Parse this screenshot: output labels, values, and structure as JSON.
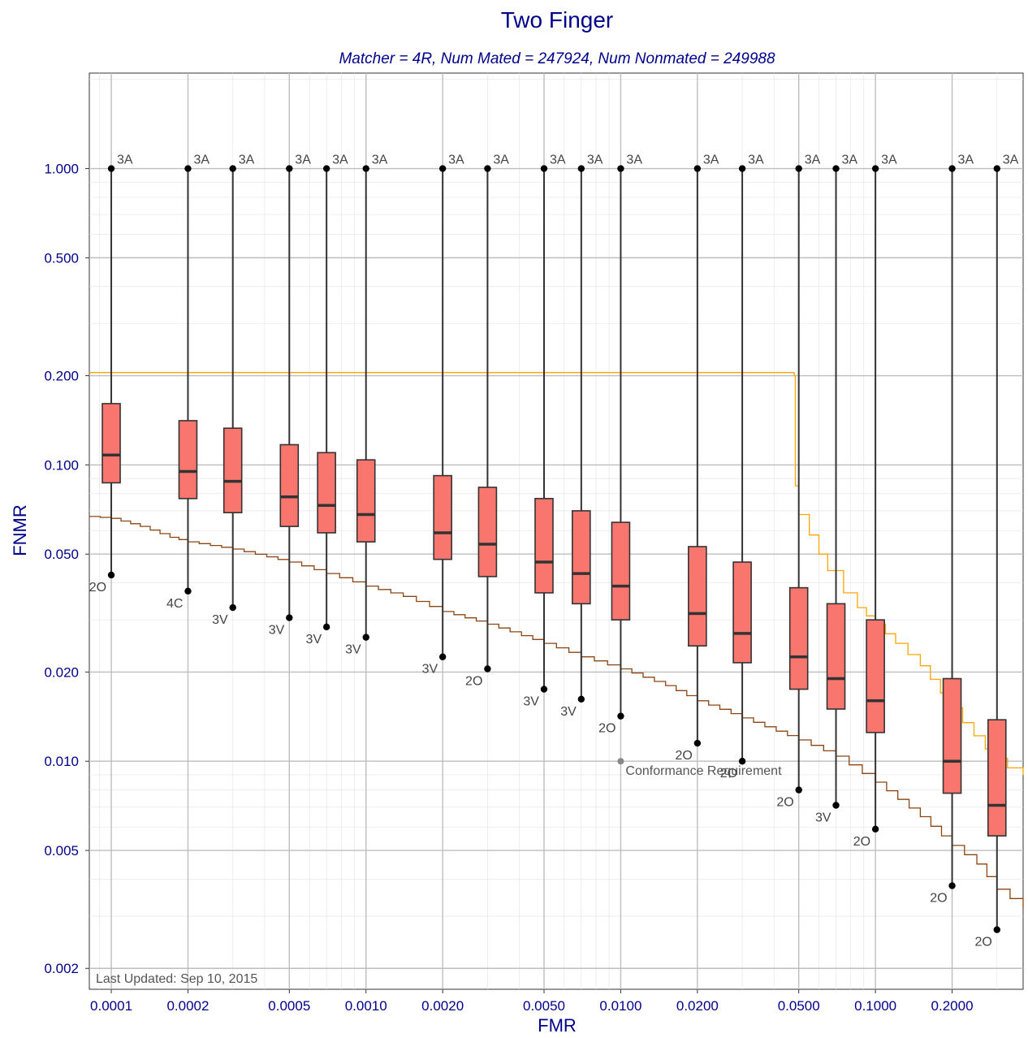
{
  "chart_data": {
    "type": "box",
    "title": "Two Finger",
    "subtitle": "Matcher = 4R,   Num Mated = 247924,   Num Nonmated = 249988",
    "xlabel": "FMR",
    "ylabel": "FNMR",
    "x_scale": "log",
    "y_scale": "log",
    "xlim": [
      8.2e-05,
      0.38
    ],
    "ylim": [
      0.0017,
      2.1
    ],
    "x_ticks": [
      0.0001,
      0.0002,
      0.0005,
      0.001,
      0.002,
      0.005,
      0.01,
      0.02,
      0.05,
      0.1,
      0.2
    ],
    "x_tick_labels": [
      "0.0001",
      "0.0002",
      "0.0005",
      "0.0010",
      "0.0020",
      "0.0050",
      "0.0100",
      "0.0200",
      "0.0500",
      "0.1000",
      "0.2000"
    ],
    "y_ticks": [
      0.002,
      0.005,
      0.01,
      0.02,
      0.05,
      0.1,
      0.2,
      0.5,
      1.0
    ],
    "y_tick_labels": [
      "0.002",
      "0.005",
      "0.010",
      "0.020",
      "0.050",
      "0.100",
      "0.200",
      "0.500",
      "1.000"
    ],
    "grid": true,
    "boxes": [
      {
        "fmr": 0.0001,
        "min": 0.0425,
        "q1": 0.087,
        "median": 0.108,
        "q3": 0.161,
        "max": 1.0,
        "max_label": "3A",
        "min_label": "2O"
      },
      {
        "fmr": 0.0002,
        "min": 0.0375,
        "q1": 0.077,
        "median": 0.095,
        "q3": 0.141,
        "max": 1.0,
        "max_label": "3A",
        "min_label": "4C"
      },
      {
        "fmr": 0.0003,
        "min": 0.033,
        "q1": 0.069,
        "median": 0.088,
        "q3": 0.133,
        "max": 1.0,
        "max_label": "3A",
        "min_label": "3V"
      },
      {
        "fmr": 0.0005,
        "min": 0.0305,
        "q1": 0.062,
        "median": 0.078,
        "q3": 0.117,
        "max": 1.0,
        "max_label": "3A",
        "min_label": "3V"
      },
      {
        "fmr": 0.0007,
        "min": 0.0284,
        "q1": 0.059,
        "median": 0.073,
        "q3": 0.11,
        "max": 1.0,
        "max_label": "3A",
        "min_label": "3V"
      },
      {
        "fmr": 0.001,
        "min": 0.0262,
        "q1": 0.055,
        "median": 0.068,
        "q3": 0.104,
        "max": 1.0,
        "max_label": "3A",
        "min_label": "3V"
      },
      {
        "fmr": 0.002,
        "min": 0.0225,
        "q1": 0.048,
        "median": 0.059,
        "q3": 0.092,
        "max": 1.0,
        "max_label": "3A",
        "min_label": "3V"
      },
      {
        "fmr": 0.003,
        "min": 0.0205,
        "q1": 0.042,
        "median": 0.054,
        "q3": 0.084,
        "max": 1.0,
        "max_label": "3A",
        "min_label": "2O"
      },
      {
        "fmr": 0.005,
        "min": 0.0175,
        "q1": 0.037,
        "median": 0.047,
        "q3": 0.077,
        "max": 1.0,
        "max_label": "3A",
        "min_label": "3V"
      },
      {
        "fmr": 0.007,
        "min": 0.0162,
        "q1": 0.034,
        "median": 0.043,
        "q3": 0.07,
        "max": 1.0,
        "max_label": "3A",
        "min_label": "3V"
      },
      {
        "fmr": 0.01,
        "min": 0.0142,
        "q1": 0.03,
        "median": 0.039,
        "q3": 0.064,
        "max": 1.0,
        "max_label": "3A",
        "min_label": "2O"
      },
      {
        "fmr": 0.02,
        "min": 0.0115,
        "q1": 0.0245,
        "median": 0.0315,
        "q3": 0.053,
        "max": 1.0,
        "max_label": "3A",
        "min_label": "2O"
      },
      {
        "fmr": 0.03,
        "min": 0.01,
        "q1": 0.0215,
        "median": 0.027,
        "q3": 0.047,
        "max": 1.0,
        "max_label": "3A",
        "min_label": "2O"
      },
      {
        "fmr": 0.05,
        "min": 0.008,
        "q1": 0.0175,
        "median": 0.0225,
        "q3": 0.0385,
        "max": 1.0,
        "max_label": "3A",
        "min_label": "2O"
      },
      {
        "fmr": 0.07,
        "min": 0.0071,
        "q1": 0.015,
        "median": 0.019,
        "q3": 0.034,
        "max": 1.0,
        "max_label": "3A",
        "min_label": "3V"
      },
      {
        "fmr": 0.1,
        "min": 0.0059,
        "q1": 0.0125,
        "median": 0.016,
        "q3": 0.03,
        "max": 1.0,
        "max_label": "3A",
        "min_label": "2O"
      },
      {
        "fmr": 0.2,
        "min": 0.0038,
        "q1": 0.0078,
        "median": 0.01,
        "q3": 0.019,
        "max": 1.0,
        "max_label": "3A",
        "min_label": "2O"
      },
      {
        "fmr": 0.3,
        "min": 0.0027,
        "q1": 0.0056,
        "median": 0.0071,
        "q3": 0.0138,
        "max": 1.0,
        "max_label": "3A",
        "min_label": "2O"
      }
    ],
    "series": [
      {
        "color": "#ffa500",
        "x": [
          8.2e-05,
          0.048,
          0.048,
          0.0485,
          0.05,
          0.055,
          0.06,
          0.065,
          0.075,
          0.085,
          0.1,
          0.12,
          0.15,
          0.18,
          0.22,
          0.27,
          0.33,
          0.38
        ],
        "y": [
          0.205,
          0.205,
          0.2,
          0.085,
          0.068,
          0.058,
          0.05,
          0.044,
          0.037,
          0.033,
          0.029,
          0.025,
          0.021,
          0.017,
          0.0135,
          0.011,
          0.0095,
          0.009
        ]
      },
      {
        "color": "#8b4513",
        "x": [
          8.2e-05,
          0.0001,
          0.00013,
          0.00017,
          0.0002,
          0.0003,
          0.0005,
          0.0007,
          0.001,
          0.0014,
          0.002,
          0.003,
          0.005,
          0.007,
          0.01,
          0.015,
          0.02,
          0.03,
          0.05,
          0.07,
          0.1,
          0.15,
          0.2,
          0.25,
          0.3,
          0.38
        ],
        "y": [
          0.067,
          0.066,
          0.062,
          0.057,
          0.055,
          0.052,
          0.047,
          0.043,
          0.039,
          0.036,
          0.032,
          0.029,
          0.025,
          0.0225,
          0.0205,
          0.018,
          0.016,
          0.014,
          0.0118,
          0.0104,
          0.0085,
          0.0065,
          0.0052,
          0.0045,
          0.0037,
          0.0032
        ]
      }
    ],
    "annotations": {
      "requirement_label": "Conformance Requirement",
      "requirement_point": {
        "fmr": 0.01,
        "fnmr": 0.01
      },
      "updated": "Last Updated: Sep 10, 2015"
    },
    "colors": {
      "box_fill": "#f8766d",
      "box_stroke": "#333333",
      "grid_major": "#bebebe",
      "grid_minor": "#e6e6e6",
      "text": "#00008b"
    }
  }
}
